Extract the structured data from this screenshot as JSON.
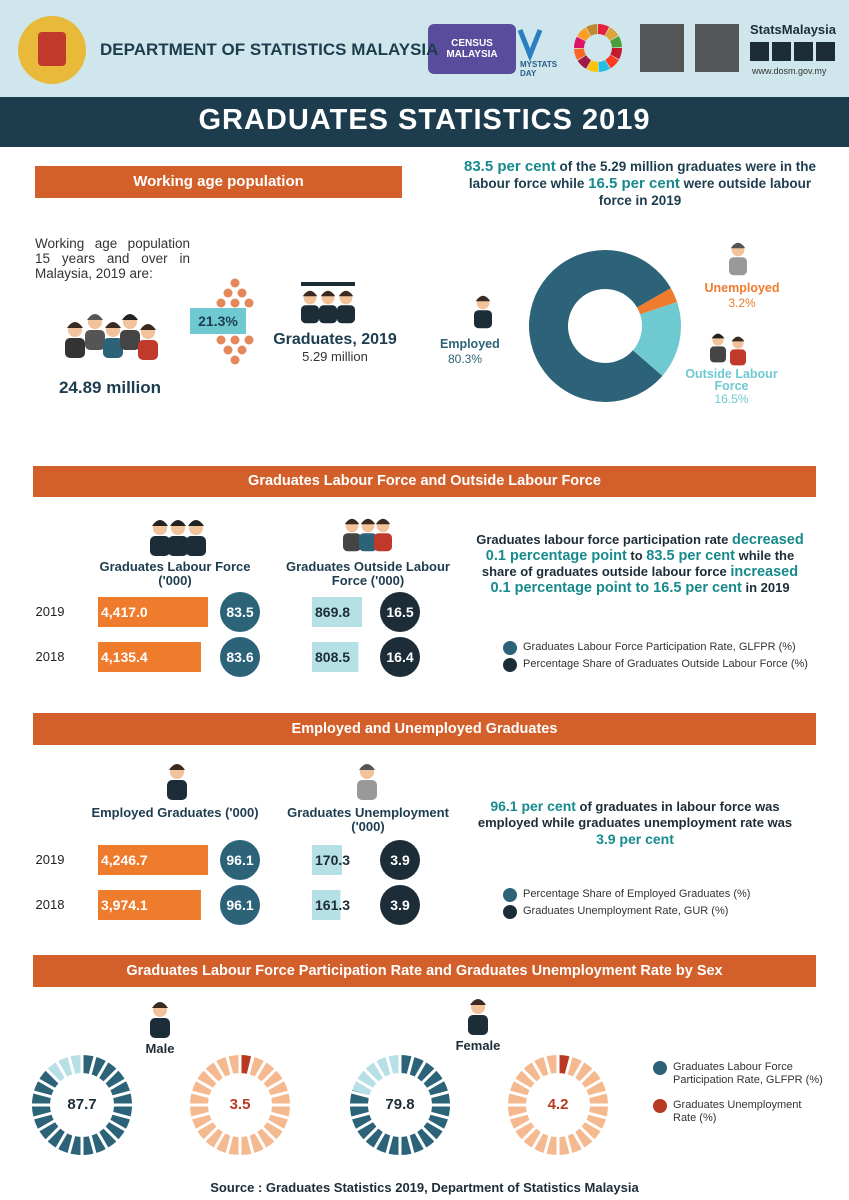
{
  "header": {
    "title": "DEPARTMENT OF STATISTICS MALAYSIA",
    "census_logo": "CENSUS MALAYSIA",
    "mystats": "MYSTATS DAY",
    "brand": "StatsMalaysia",
    "website": "www.dosm.gov.my"
  },
  "banner": "GRADUATES STATISTICS 2019",
  "working_age": {
    "heading": "Working age population",
    "intro": "Working age population 15 years and over in Malaysia, 2019 are:",
    "population": "24.89 million",
    "share": "21.3%",
    "graduates_label": "Graduates, 2019",
    "graduates_value": "5.29 million"
  },
  "labour_force_summary": {
    "parts": [
      {
        "text": "83.5 per cent",
        "emphasis": true
      },
      {
        "text": " of the 5.29 million graduates were in the labour force while ",
        "emphasis": false
      },
      {
        "text": "16.5 per cent",
        "emphasis": true
      },
      {
        "text": " were outside labour force in 2019",
        "emphasis": false
      }
    ]
  },
  "donut": {
    "labels": [
      "Employed",
      "Unemployed",
      "Outside Labour Force"
    ],
    "values": [
      80.3,
      3.2,
      16.5
    ],
    "value_labels": [
      "80.3%",
      "3.2%",
      "16.5%"
    ],
    "colors": [
      "#2c6379",
      "#ef7b2d",
      "#6ec9d1"
    ]
  },
  "labour_force": {
    "heading": "Graduates Labour Force and Outside Labour Force",
    "columns": [
      "Graduates Labour Force ('000)",
      "Graduates Outside Labour Force ('000)"
    ],
    "rows": [
      {
        "year": "2019",
        "labour_force": {
          "value": 4417.0,
          "label": "4,417.0"
        },
        "lfpr": 83.5,
        "outside": 869.8,
        "outside_share": 16.5
      },
      {
        "year": "2018",
        "labour_force": {
          "value": 4135.4,
          "label": "4,135.4"
        },
        "lfpr": 83.6,
        "outside": 808.5,
        "outside_share": 16.4
      }
    ],
    "summary": {
      "parts": [
        {
          "text": "Graduates labour force participation rate ",
          "emphasis": false
        },
        {
          "text": "decreased 0.1 percentage point",
          "emphasis": true
        },
        {
          "text": " to ",
          "emphasis": false
        },
        {
          "text": "83.5 per cent",
          "emphasis": true
        },
        {
          "text": " while the share of graduates outside labour force ",
          "emphasis": false
        },
        {
          "text": "increased 0.1 percentage point to 16.5 per cent",
          "emphasis": true
        },
        {
          "text": " in 2019",
          "emphasis": false
        }
      ]
    },
    "legend": [
      {
        "label": "Graduates Labour Force Participation Rate, GLFPR (%)",
        "color": "#2c6379"
      },
      {
        "label": "Percentage Share of Graduates Outside Labour Force (%)",
        "color": "#1d2d38"
      }
    ]
  },
  "employment": {
    "heading": "Employed and Unemployed Graduates",
    "columns": [
      "Employed Graduates ('000)",
      "Graduates Unemployment ('000)"
    ],
    "rows": [
      {
        "year": "2019",
        "employed": {
          "value": 4246.7,
          "label": "4,246.7"
        },
        "employed_share": 96.1,
        "unemployed": 170.3,
        "unemployment_rate": 3.9
      },
      {
        "year": "2018",
        "employed": {
          "value": 3974.1,
          "label": "3,974.1"
        },
        "employed_share": 96.1,
        "unemployed": 161.3,
        "unemployment_rate": 3.9
      }
    ],
    "summary": {
      "parts": [
        {
          "text": "96.1 per cent",
          "emphasis": true
        },
        {
          "text": " of graduates in labour force was employed while graduates unemployment rate was ",
          "emphasis": false
        },
        {
          "text": "3.9 per cent",
          "emphasis": true
        }
      ]
    },
    "legend": [
      {
        "label": "Percentage Share of Employed Graduates (%)",
        "color": "#2c6379"
      },
      {
        "label": "Graduates Unemployment Rate, GUR (%)",
        "color": "#1d2d38"
      }
    ]
  },
  "by_sex": {
    "heading": "Graduates Labour Force Participation Rate and Graduates Unemployment Rate by Sex",
    "groups": [
      {
        "label": "Male",
        "glfpr": 87.7,
        "gur": 3.5
      },
      {
        "label": "Female",
        "glfpr": 79.8,
        "gur": 4.2
      }
    ],
    "legend": [
      {
        "label": "Graduates Labour Force Participation Rate, GLFPR (%)",
        "color": "#2c6379"
      },
      {
        "label": "Graduates Unemployment Rate (%)",
        "color": "#b83a23"
      }
    ]
  },
  "source": "Source : Graduates Statistics 2019, Department of Statistics Malaysia"
}
